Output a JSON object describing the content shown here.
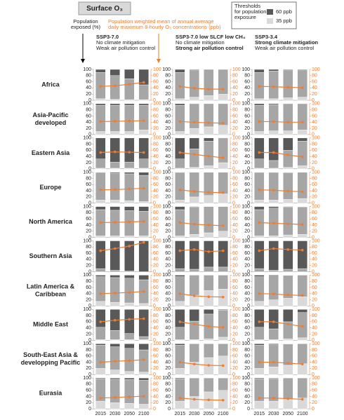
{
  "chart_data": {
    "type": "stacked-bar-line",
    "title": "Surface O₃",
    "legend": {
      "title": [
        "Thresholds",
        "for population",
        "exposure"
      ],
      "items": [
        {
          "name": "60 ppb",
          "color": "#595959"
        },
        {
          "name": "35 ppb",
          "color": "#d9d9d9"
        }
      ]
    },
    "left_axis_label": [
      "Population",
      "exposed (%)"
    ],
    "right_axis_label": [
      "Population weighted mean of annual average",
      "daily maximum 8-hourly O₃ concentrations (ppb)"
    ],
    "categories": [
      "2015",
      "2030",
      "2050",
      "2100"
    ],
    "ylim": [
      0,
      100
    ],
    "yticks": [
      0,
      20,
      40,
      60,
      80,
      100
    ],
    "y2lim": [
      0,
      100
    ],
    "y2ticks": [
      0,
      20,
      40,
      60,
      80,
      100
    ],
    "segment_colors": [
      "#d9d9d9",
      "#a6a6a6",
      "#595959"
    ],
    "line_color": "#ed7d31",
    "scenarios": [
      {
        "lines": [
          "SSP3-7.0",
          "No climate mitigation",
          "Weak air pollution control"
        ]
      },
      {
        "lines": [
          "SSP3-7.0 low SLCF low CH₄",
          "No climate mitigation",
          "Strong air pollution control"
        ]
      },
      {
        "lines": [
          "SSP3-3.4",
          "Strong climate mitigation",
          "Weak air pollution control"
        ]
      }
    ],
    "regions": [
      {
        "name": [
          "Africa"
        ],
        "panels": [
          {
            "segments": [
              [
                5,
                3,
                2,
                2
              ],
              [
                85,
                77,
                68,
                48
              ],
              [
                10,
                20,
                30,
                50
              ]
            ],
            "mean": [
              45,
              47,
              52,
              58
            ]
          },
          {
            "segments": [
              [
                5,
                10,
                15,
                20
              ],
              [
                85,
                88,
                85,
                80
              ],
              [
                10,
                2,
                0,
                0
              ]
            ],
            "mean": [
              45,
              39,
              36,
              36
            ]
          },
          {
            "segments": [
              [
                5,
                5,
                8,
                10
              ],
              [
                85,
                90,
                90,
                88
              ],
              [
                10,
                5,
                2,
                2
              ]
            ],
            "mean": [
              45,
              44,
              42,
              41
            ]
          }
        ]
      },
      {
        "name": [
          "Asia-Pacific",
          "developed"
        ],
        "panels": [
          {
            "segments": [
              [
                10,
                10,
                10,
                15
              ],
              [
                85,
                85,
                85,
                80
              ],
              [
                5,
                5,
                5,
                5
              ]
            ],
            "mean": [
              42,
              43,
              44,
              45
            ]
          },
          {
            "segments": [
              [
                10,
                20,
                25,
                30
              ],
              [
                85,
                78,
                75,
                70
              ],
              [
                5,
                2,
                0,
                0
              ]
            ],
            "mean": [
              42,
              40,
              38,
              37
            ]
          },
          {
            "segments": [
              [
                10,
                12,
                12,
                15
              ],
              [
                85,
                85,
                86,
                83
              ],
              [
                5,
                3,
                2,
                2
              ]
            ],
            "mean": [
              42,
              42,
              40,
              40
            ]
          }
        ]
      },
      {
        "name": [
          "Eastern Asia"
        ],
        "panels": [
          {
            "segments": [
              [
                2,
                2,
                2,
                2
              ],
              [
                30,
                20,
                20,
                30
              ],
              [
                68,
                78,
                78,
                68
              ]
            ],
            "mean": [
              53,
              55,
              54,
              53
            ]
          },
          {
            "segments": [
              [
                2,
                5,
                10,
                20
              ],
              [
                30,
                60,
                80,
                78
              ],
              [
                68,
                35,
                10,
                2
              ]
            ],
            "mean": [
              53,
              47,
              41,
              36
            ]
          },
          {
            "segments": [
              [
                2,
                2,
                5,
                10
              ],
              [
                30,
                25,
                55,
                80
              ],
              [
                68,
                73,
                40,
                10
              ]
            ],
            "mean": [
              53,
              53,
              45,
              39
            ]
          }
        ]
      },
      {
        "name": [
          "Europe"
        ],
        "panels": [
          {
            "segments": [
              [
                10,
                10,
                8,
                5
              ],
              [
                88,
                87,
                87,
                85
              ],
              [
                2,
                3,
                5,
                10
              ]
            ],
            "mean": [
              43,
              44,
              46,
              48
            ]
          },
          {
            "segments": [
              [
                10,
                20,
                25,
                30
              ],
              [
                88,
                80,
                75,
                70
              ],
              [
                2,
                0,
                0,
                0
              ]
            ],
            "mean": [
              43,
              38,
              35,
              34
            ]
          },
          {
            "segments": [
              [
                10,
                10,
                12,
                15
              ],
              [
                88,
                88,
                87,
                85
              ],
              [
                2,
                2,
                1,
                0
              ]
            ],
            "mean": [
              43,
              42,
              39,
              37
            ]
          }
        ]
      },
      {
        "name": [
          "North America"
        ],
        "panels": [
          {
            "segments": [
              [
                5,
                5,
                5,
                5
              ],
              [
                85,
                83,
                82,
                80
              ],
              [
                10,
                12,
                13,
                15
              ]
            ],
            "mean": [
              48,
              49,
              50,
              52
            ]
          },
          {
            "segments": [
              [
                5,
                10,
                15,
                20
              ],
              [
                85,
                88,
                85,
                80
              ],
              [
                10,
                2,
                0,
                0
              ]
            ],
            "mean": [
              48,
              43,
              40,
              38
            ]
          },
          {
            "segments": [
              [
                5,
                5,
                8,
                10
              ],
              [
                85,
                90,
                90,
                89
              ],
              [
                10,
                5,
                2,
                1
              ]
            ],
            "mean": [
              48,
              46,
              44,
              42
            ]
          }
        ]
      },
      {
        "name": [
          "Southern Asia"
        ],
        "panels": [
          {
            "segments": [
              [
                0,
                0,
                0,
                0
              ],
              [
                10,
                5,
                2,
                0
              ],
              [
                90,
                95,
                98,
                100
              ]
            ],
            "mean": [
              68,
              75,
              83,
              95
            ]
          },
          {
            "segments": [
              [
                0,
                0,
                0,
                0
              ],
              [
                10,
                8,
                15,
                15
              ],
              [
                90,
                92,
                85,
                85
              ]
            ],
            "mean": [
              68,
              72,
              65,
              68
            ]
          },
          {
            "segments": [
              [
                0,
                0,
                0,
                0
              ],
              [
                10,
                5,
                8,
                10
              ],
              [
                90,
                95,
                92,
                90
              ]
            ],
            "mean": [
              68,
              75,
              72,
              70
            ]
          }
        ]
      },
      {
        "name": [
          "Latin America &",
          "Caribbean"
        ],
        "panels": [
          {
            "segments": [
              [
                15,
                12,
                10,
                8
              ],
              [
                80,
                80,
                80,
                77
              ],
              [
                5,
                8,
                10,
                15
              ]
            ],
            "mean": [
              40,
              42,
              44,
              47
            ]
          },
          {
            "segments": [
              [
                15,
                35,
                50,
                55
              ],
              [
                80,
                65,
                50,
                45
              ],
              [
                5,
                0,
                0,
                0
              ]
            ],
            "mean": [
              40,
              33,
              30,
              29
            ]
          },
          {
            "segments": [
              [
                15,
                20,
                25,
                30
              ],
              [
                80,
                77,
                74,
                70
              ],
              [
                5,
                3,
                1,
                0
              ]
            ],
            "mean": [
              40,
              39,
              36,
              34
            ]
          }
        ]
      },
      {
        "name": [
          "Middle East"
        ],
        "panels": [
          {
            "segments": [
              [
                2,
                2,
                2,
                2
              ],
              [
                40,
                30,
                20,
                10
              ],
              [
                58,
                68,
                78,
                88
              ]
            ],
            "mean": [
              60,
              65,
              68,
              70
            ]
          },
          {
            "segments": [
              [
                2,
                2,
                5,
                10
              ],
              [
                40,
                60,
                80,
                88
              ],
              [
                58,
                38,
                15,
                2
              ]
            ],
            "mean": [
              60,
              52,
              45,
              42
            ]
          },
          {
            "segments": [
              [
                2,
                2,
                5,
                8
              ],
              [
                40,
                35,
                55,
                82
              ],
              [
                58,
                63,
                40,
                10
              ]
            ],
            "mean": [
              60,
              60,
              52,
              45
            ]
          }
        ]
      },
      {
        "name": [
          "South-East Asia &",
          "developping Pacific"
        ],
        "panels": [
          {
            "segments": [
              [
                20,
                15,
                10,
                8
              ],
              [
                75,
                75,
                75,
                72
              ],
              [
                5,
                10,
                15,
                20
              ]
            ],
            "mean": [
              40,
              43,
              45,
              48
            ]
          },
          {
            "segments": [
              [
                20,
                40,
                55,
                60
              ],
              [
                75,
                60,
                45,
                40
              ],
              [
                5,
                0,
                0,
                0
              ]
            ],
            "mean": [
              40,
              34,
              30,
              29
            ]
          },
          {
            "segments": [
              [
                20,
                25,
                30,
                35
              ],
              [
                75,
                72,
                69,
                65
              ],
              [
                5,
                3,
                1,
                0
              ]
            ],
            "mean": [
              40,
              40,
              37,
              34
            ]
          }
        ]
      },
      {
        "name": [
          "Eurasia"
        ],
        "panels": [
          {
            "segments": [
              [
                25,
                20,
                18,
                15
              ],
              [
                72,
                76,
                77,
                78
              ],
              [
                3,
                4,
                5,
                7
              ]
            ],
            "mean": [
              35,
              37,
              39,
              41
            ]
          },
          {
            "segments": [
              [
                25,
                40,
                55,
                60
              ],
              [
                72,
                60,
                45,
                40
              ],
              [
                3,
                0,
                0,
                0
              ]
            ],
            "mean": [
              35,
              31,
              29,
              28
            ]
          },
          {
            "segments": [
              [
                25,
                25,
                30,
                35
              ],
              [
                72,
                73,
                70,
                65
              ],
              [
                3,
                2,
                0,
                0
              ]
            ],
            "mean": [
              35,
              35,
              33,
              31
            ]
          }
        ]
      }
    ]
  }
}
